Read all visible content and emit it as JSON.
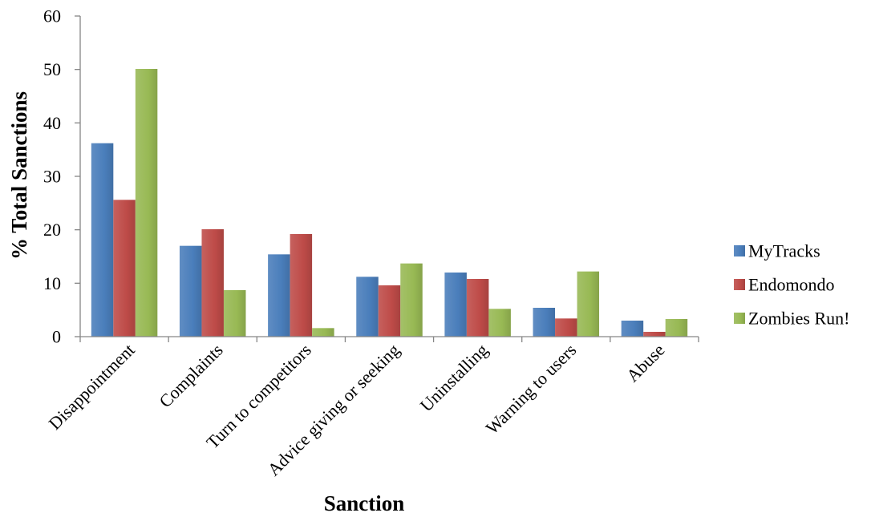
{
  "chart_data": {
    "type": "bar",
    "title": "",
    "xlabel": "Sanction",
    "ylabel": "% Total Sanctions",
    "ylim": [
      0,
      60
    ],
    "yticks": [
      0,
      10,
      20,
      30,
      40,
      50,
      60
    ],
    "grid": false,
    "legend_position": "right",
    "categories": [
      "Disappointment",
      "Complaints",
      "Turn to competitors",
      "Advice giving or seeking",
      "Uninstalling",
      "Warning to users",
      "Abuse"
    ],
    "series": [
      {
        "name": "MyTracks",
        "color": "#4a7ebb",
        "values": [
          36.2,
          17.0,
          15.4,
          11.2,
          12.0,
          5.4,
          3.0
        ]
      },
      {
        "name": "Endomondo",
        "color": "#be4b48",
        "values": [
          25.6,
          20.1,
          19.2,
          9.6,
          10.8,
          3.4,
          0.9
        ]
      },
      {
        "name": "Zombies Run!",
        "color": "#98b954",
        "values": [
          50.1,
          8.7,
          1.6,
          13.7,
          5.2,
          12.2,
          3.3
        ]
      }
    ]
  }
}
